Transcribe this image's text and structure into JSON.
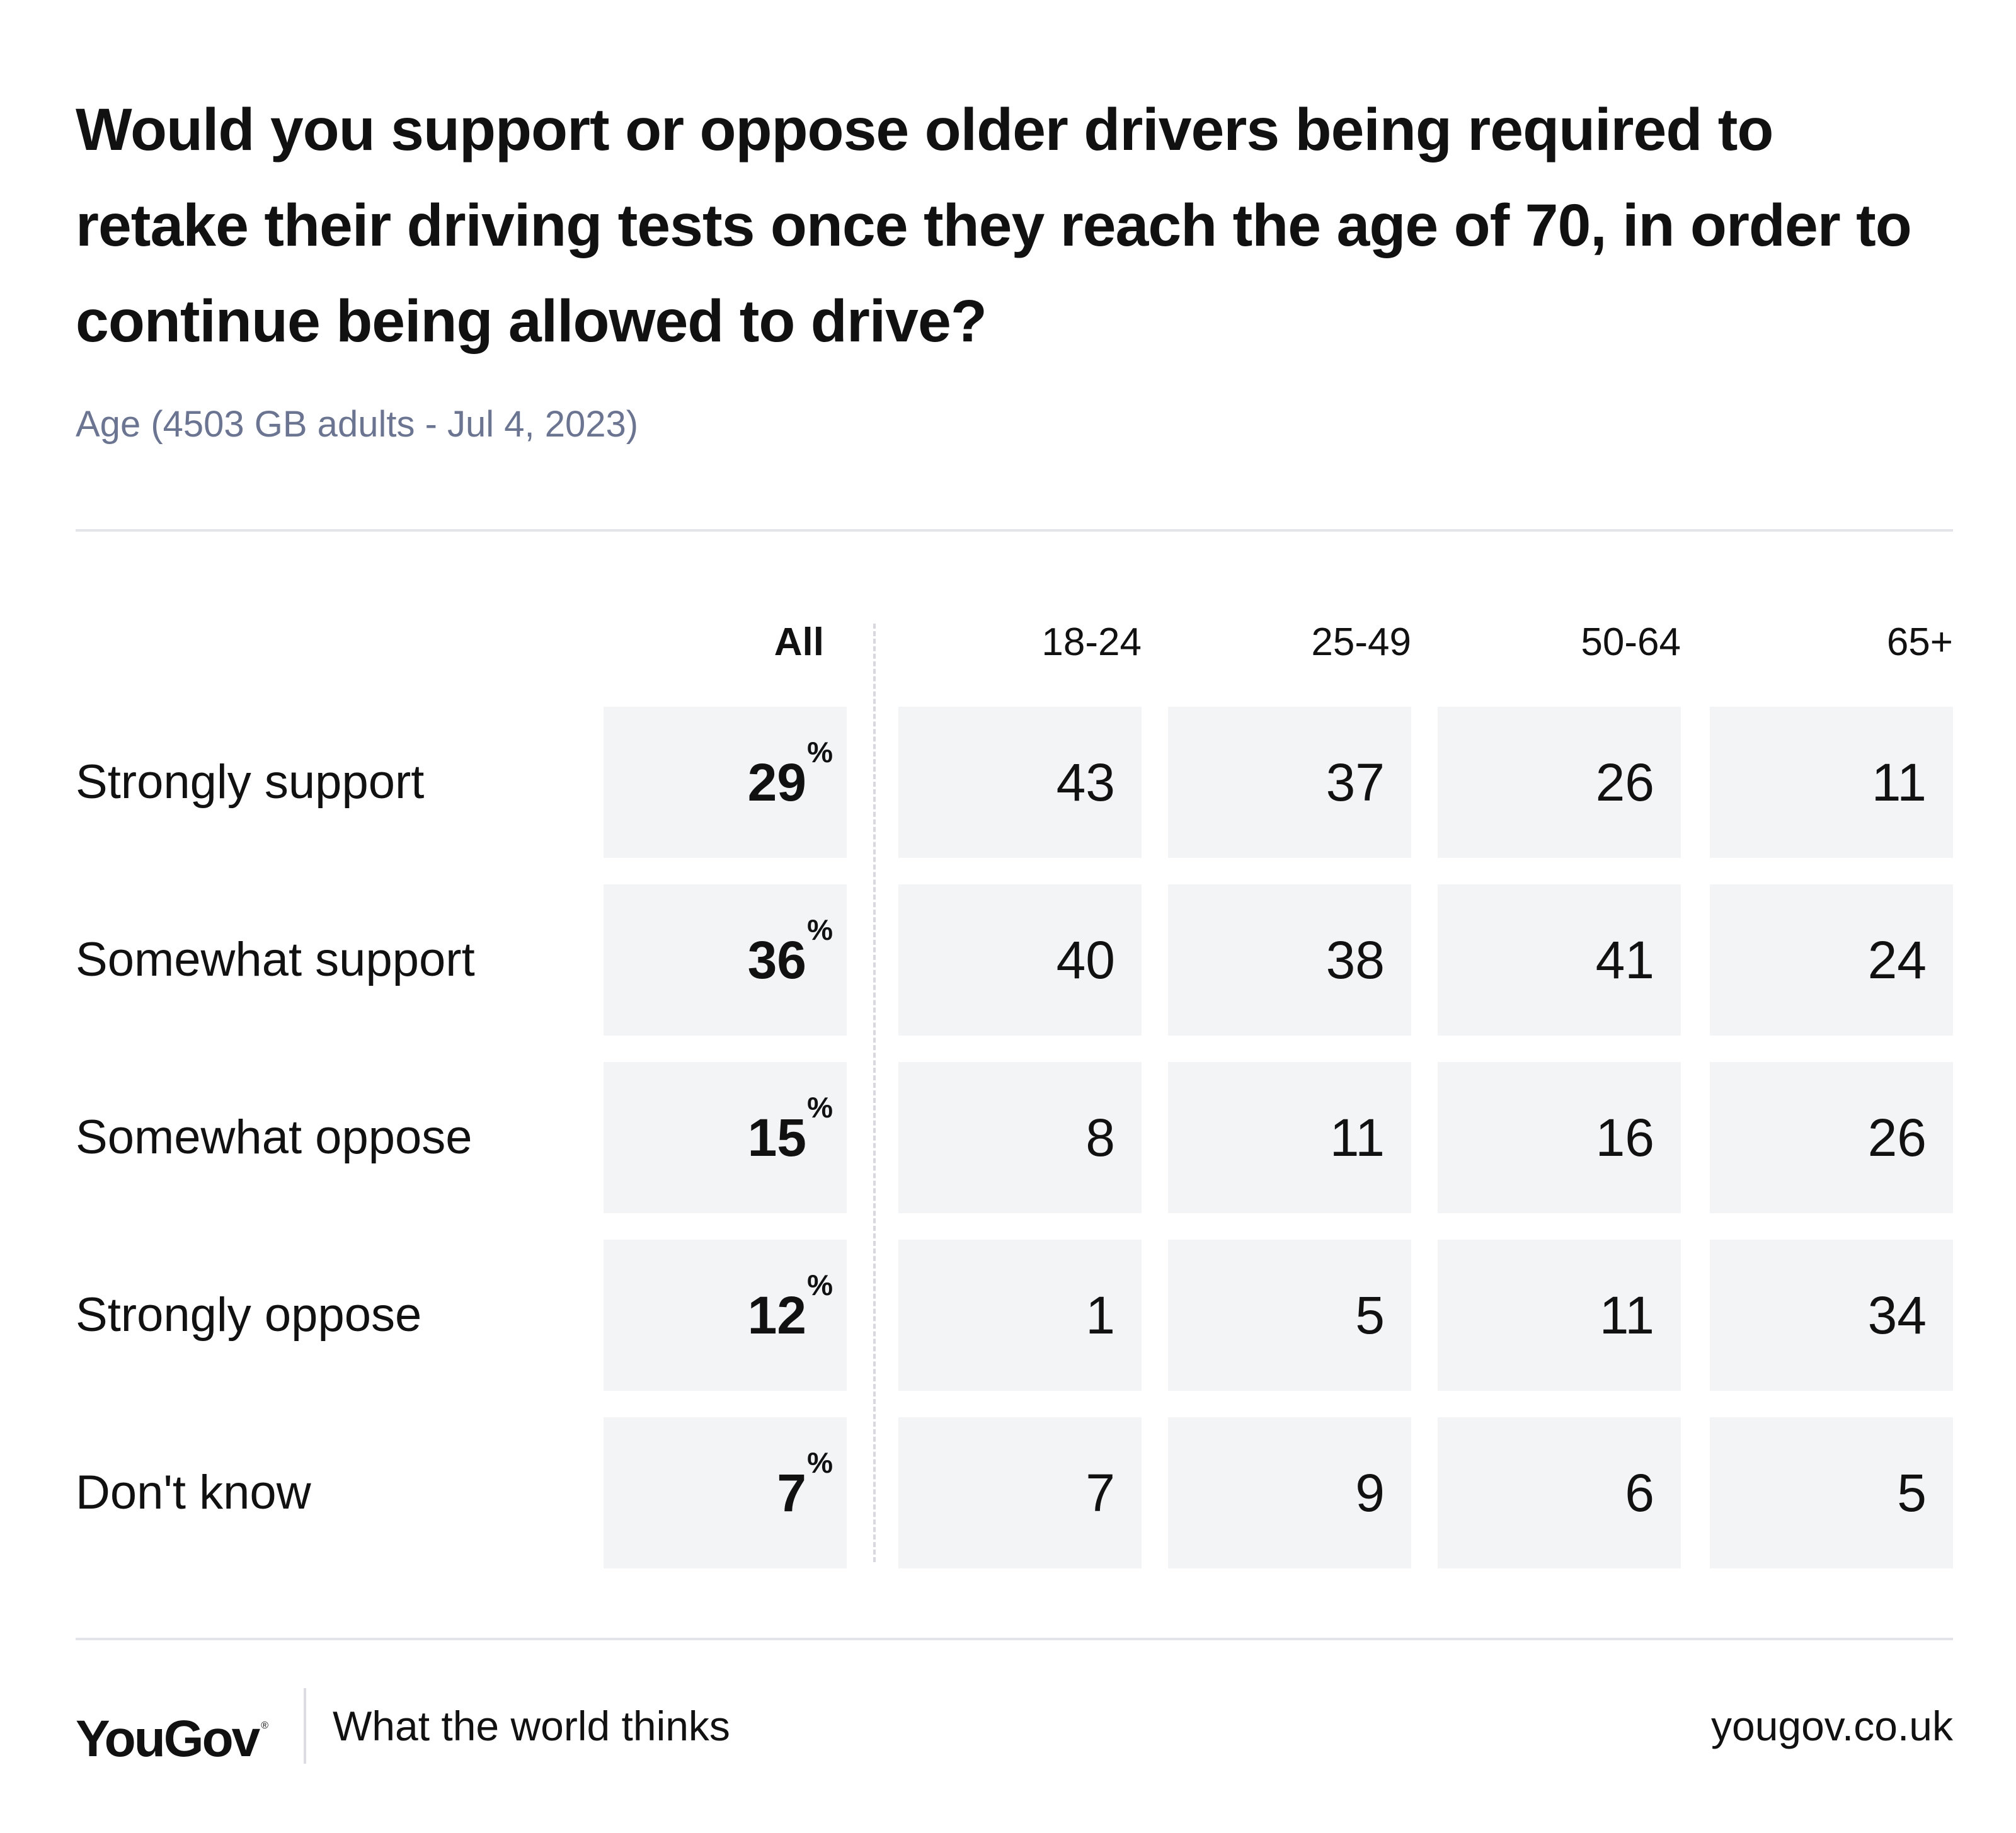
{
  "chart_data": {
    "type": "table",
    "title": "Would you support or oppose older drivers being required to retake their driving tests once they reach the age of 70, in order to continue being allowed to drive?",
    "subtitle": "Age (4503 GB adults - Jul 4, 2023)",
    "columns": [
      "All",
      "18-24",
      "25-49",
      "50-64",
      "65+"
    ],
    "percent_symbol": "%",
    "rows": [
      {
        "label": "Strongly support",
        "values": [
          29,
          43,
          37,
          26,
          11
        ]
      },
      {
        "label": "Somewhat support",
        "values": [
          36,
          40,
          38,
          41,
          24
        ]
      },
      {
        "label": "Somewhat oppose",
        "values": [
          15,
          8,
          11,
          16,
          26
        ]
      },
      {
        "label": "Strongly oppose",
        "values": [
          12,
          1,
          5,
          11,
          34
        ]
      },
      {
        "label": "Don't know",
        "values": [
          7,
          7,
          9,
          6,
          5
        ]
      }
    ]
  },
  "footer": {
    "brand": "YouGov",
    "brand_mark": "®",
    "tagline": "What the world thinks",
    "url": "yougov.co.uk"
  }
}
